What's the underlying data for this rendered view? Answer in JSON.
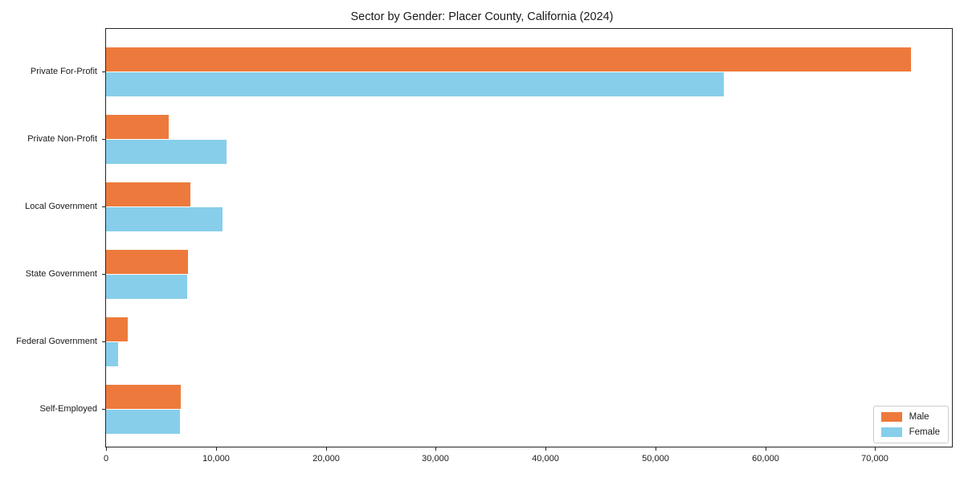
{
  "chart_data": {
    "type": "bar",
    "orientation": "horizontal",
    "title": "Sector by Gender: Placer County, California (2024)",
    "categories": [
      "Private For-Profit",
      "Private Non-Profit",
      "Local Government",
      "State Government",
      "Federal Government",
      "Self-Employed"
    ],
    "series": [
      {
        "name": "Male",
        "color": "#ED7A3C",
        "values": [
          73300,
          5700,
          7700,
          7450,
          2000,
          6800
        ]
      },
      {
        "name": "Female",
        "color": "#87CEEB",
        "values": [
          56200,
          11000,
          10600,
          7400,
          1100,
          6750
        ]
      }
    ],
    "xlabel": "",
    "ylabel": "",
    "xlim": [
      0,
      77000
    ],
    "xticks": [
      0,
      10000,
      20000,
      30000,
      40000,
      50000,
      60000,
      70000
    ],
    "tick_format": "thousands-comma",
    "grid": false,
    "legend_position": "lower right",
    "spine_color": "#262626",
    "text_color": "#1a1a1a"
  }
}
